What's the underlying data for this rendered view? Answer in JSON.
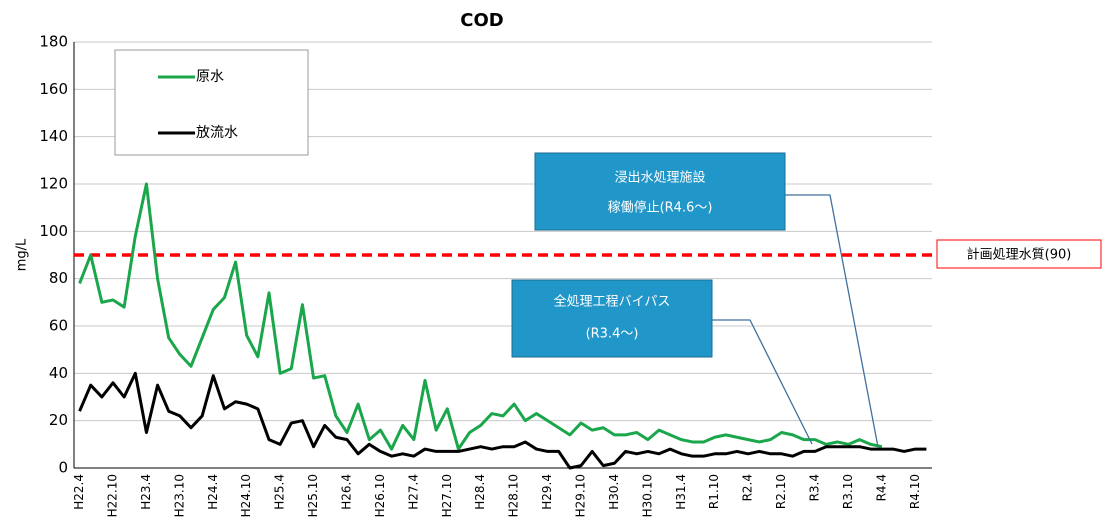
{
  "chart_data": {
    "type": "line",
    "title": "COD",
    "y_label": "mg/L",
    "categories": [
      "H22.4",
      null,
      null,
      "H22.10",
      null,
      null,
      "H23.4",
      null,
      null,
      "H23.10",
      null,
      null,
      "H24.4",
      null,
      null,
      "H24.10",
      null,
      null,
      "H25.4",
      null,
      null,
      "H25.10",
      null,
      null,
      "H26.4",
      null,
      null,
      "H26.10",
      null,
      null,
      "H27.4",
      null,
      null,
      "H27.10",
      null,
      null,
      "H28.4",
      null,
      null,
      "H28.10",
      null,
      null,
      "H29.4",
      null,
      null,
      "H29.10",
      null,
      null,
      "H30.4",
      null,
      null,
      "H30.10",
      null,
      null,
      "H31.4",
      null,
      null,
      "R1.10",
      null,
      null,
      "R2.4",
      null,
      null,
      "R2.10",
      null,
      null,
      "R3.4",
      null,
      null,
      "R3.10",
      null,
      null,
      "R4.4",
      null,
      null,
      "R4.10",
      null
    ],
    "series": [
      {
        "name": "原水",
        "color": "#1aa64a",
        "values": [
          78,
          90,
          70,
          71,
          68,
          98,
          120,
          80,
          55,
          48,
          43,
          55,
          67,
          72,
          87,
          56,
          47,
          74,
          40,
          42,
          69,
          38,
          39,
          22,
          15,
          27,
          12,
          16,
          8,
          18,
          12,
          37,
          16,
          25,
          8,
          15,
          18,
          23,
          22,
          27,
          20,
          23,
          20,
          17,
          14,
          19,
          16,
          17,
          14,
          14,
          15,
          12,
          16,
          14,
          12,
          11,
          11,
          13,
          14,
          13,
          12,
          11,
          12,
          15,
          14,
          12,
          12,
          10,
          11,
          10,
          12,
          10,
          9,
          null,
          null,
          null,
          null
        ]
      },
      {
        "name": "放流水",
        "color": "#000000",
        "values": [
          24,
          35,
          30,
          36,
          30,
          40,
          15,
          35,
          24,
          22,
          17,
          22,
          39,
          25,
          28,
          27,
          25,
          12,
          10,
          19,
          20,
          9,
          18,
          13,
          12,
          6,
          10,
          7,
          5,
          6,
          5,
          8,
          7,
          7,
          7,
          8,
          9,
          8,
          9,
          9,
          11,
          8,
          7,
          7,
          0,
          1,
          7,
          1,
          2,
          7,
          6,
          7,
          6,
          8,
          6,
          5,
          5,
          6,
          6,
          7,
          6,
          7,
          6,
          6,
          5,
          7,
          7,
          9,
          9,
          9,
          9,
          8,
          8,
          8,
          7,
          8,
          8
        ]
      }
    ],
    "ylim": [
      0,
      180
    ],
    "yticks": [
      0,
      20,
      40,
      60,
      80,
      100,
      120,
      140,
      160,
      180
    ],
    "grid": true,
    "reference_line": {
      "value": 90,
      "label": "計画処理水質(90)",
      "color": "#ff0000"
    },
    "annotations": [
      {
        "lines": [
          "浸出水処理施設",
          "稼働停止(R4.6～)"
        ]
      },
      {
        "lines": [
          "全処理工程バイパス",
          "(R3.4～)"
        ]
      }
    ]
  }
}
